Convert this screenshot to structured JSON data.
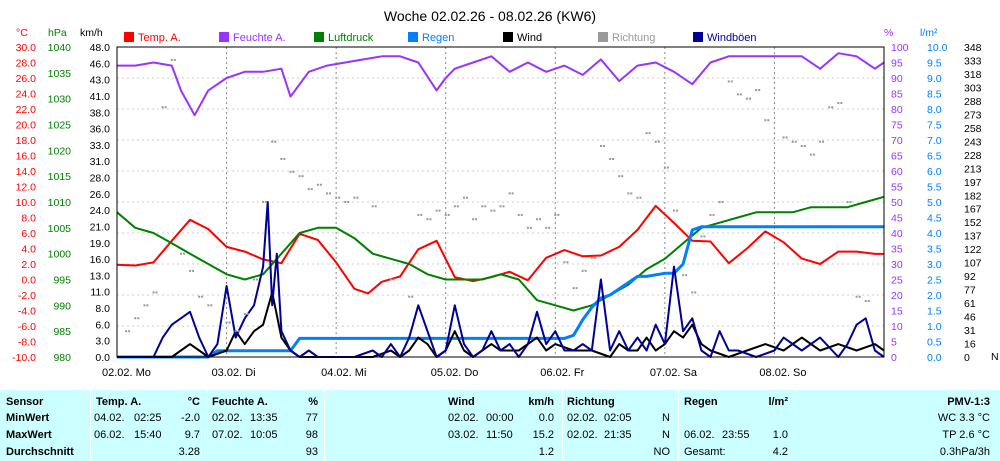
{
  "chart_data": {
    "type": "line",
    "title": "Woche 02.02.26 - 08.02.26 (KW6)",
    "xlabels": [
      "02.02. Mo",
      "03.02. Di",
      "04.02. Mi",
      "05.02. Do",
      "06.02. Fr",
      "07.02. Sa",
      "08.02. So"
    ],
    "legend": [
      {
        "name": "Temp. A.",
        "color": "#ff0000"
      },
      {
        "name": "Feuchte A.",
        "color": "#9933ff"
      },
      {
        "name": "Luftdruck",
        "color": "#008000"
      },
      {
        "name": "Regen",
        "color": "#0080ff"
      },
      {
        "name": "Wind",
        "color": "#000000"
      },
      {
        "name": "Richtung",
        "color": "#999999"
      },
      {
        "name": "Windböen",
        "color": "#000099"
      }
    ],
    "axes": {
      "temp": {
        "unit": "°C",
        "color": "#ff0000",
        "ylim": [
          -10,
          30
        ],
        "ticks": [
          "30.0",
          "28.0",
          "26.0",
          "24.0",
          "22.0",
          "20.0",
          "18.0",
          "16.0",
          "14.0",
          "12.0",
          "10.0",
          "8.0",
          "6.0",
          "4.0",
          "2.0",
          "0.0",
          "-2.0",
          "-4.0",
          "-6.0",
          "-8.0",
          "-10.0"
        ]
      },
      "pressure": {
        "unit": "hPa",
        "color": "#008000",
        "ylim": [
          980,
          1040
        ],
        "ticks": [
          "1040",
          "1035",
          "1030",
          "1025",
          "1020",
          "1015",
          "1010",
          "1005",
          "1000",
          "995",
          "990",
          "985",
          "980"
        ]
      },
      "wind": {
        "unit": "km/h",
        "color": "#000000",
        "ylim": [
          0,
          48
        ],
        "ticks": [
          "48.0",
          "46.0",
          "43.0",
          "41.0",
          "38.0",
          "36.0",
          "33.0",
          "31.0",
          "28.0",
          "26.0",
          "24.0",
          "21.0",
          "19.0",
          "16.0",
          "13.0",
          "11.0",
          "8.0",
          "6.0",
          "3.0",
          "0.0"
        ]
      },
      "humidity": {
        "unit": "%",
        "color": "#9933ff",
        "ylim": [
          0,
          100
        ],
        "ticks": [
          "100",
          "95",
          "90",
          "85",
          "80",
          "75",
          "70",
          "65",
          "60",
          "55",
          "50",
          "45",
          "40",
          "35",
          "30",
          "25",
          "20",
          "15",
          "10",
          "5",
          "0"
        ]
      },
      "rain": {
        "unit": "l/m²",
        "color": "#0080ff",
        "ylim": [
          0,
          10
        ],
        "ticks": [
          "10.0",
          "9.5",
          "9.0",
          "8.5",
          "8.0",
          "7.5",
          "7.0",
          "6.5",
          "6.0",
          "5.5",
          "5.0",
          "4.5",
          "4.0",
          "3.5",
          "3.0",
          "2.5",
          "2.0",
          "1.5",
          "1.0",
          "0.5",
          "0.0"
        ]
      },
      "direction": {
        "color": "#000000",
        "ylim": [
          0,
          360
        ],
        "ticks": [
          "348",
          "333",
          "318",
          "303",
          "288",
          "273",
          "258",
          "243",
          "228",
          "213",
          "197",
          "182",
          "167",
          "152",
          "137",
          "122",
          "107",
          "92",
          "77",
          "61",
          "46",
          "31",
          "16",
          "0"
        ],
        "label": "N"
      }
    },
    "x_range_hours": [
      0,
      168
    ],
    "series": [
      {
        "name": "Temp. A.",
        "axis": "temp",
        "color": "#ff0000",
        "x": [
          0,
          4,
          8,
          12,
          16,
          20,
          24,
          28,
          32,
          36,
          40,
          44,
          48,
          52,
          55,
          58,
          62,
          66,
          70,
          74,
          78,
          82,
          86,
          90,
          94,
          98,
          102,
          106,
          110,
          114,
          118,
          122,
          126,
          130,
          134,
          138,
          142,
          146,
          150,
          154,
          158,
          162,
          166,
          168
        ],
        "y": [
          1.9,
          1.8,
          2.2,
          5.0,
          7.7,
          6.5,
          4.2,
          3.6,
          2.6,
          2.1,
          5.9,
          5.1,
          2.2,
          -1.2,
          -1.8,
          -0.3,
          0.4,
          3.9,
          5.0,
          0.3,
          -0.2,
          0.3,
          1.0,
          -0.1,
          2.8,
          3.8,
          3.0,
          3.1,
          4.2,
          6.4,
          9.5,
          7.3,
          5.0,
          4.9,
          2.1,
          4.0,
          6.2,
          4.8,
          2.7,
          2.0,
          3.6,
          3.6,
          3.3,
          3.3
        ]
      },
      {
        "name": "Feuchte A.",
        "axis": "humidity",
        "color": "#9933ff",
        "x": [
          0,
          4,
          8,
          12,
          14,
          17,
          20,
          24,
          28,
          32,
          36,
          38,
          42,
          46,
          50,
          54,
          58,
          62,
          66,
          70,
          72,
          74,
          78,
          82,
          86,
          90,
          94,
          98,
          102,
          106,
          110,
          114,
          118,
          122,
          126,
          130,
          134,
          138,
          142,
          146,
          150,
          154,
          158,
          162,
          166,
          168
        ],
        "y": [
          94,
          94,
          95,
          94,
          86,
          78,
          86,
          90,
          92,
          92,
          93,
          84,
          92,
          94,
          95,
          96,
          97,
          97,
          95,
          86,
          90,
          93,
          95,
          97,
          92,
          95,
          92,
          94,
          91,
          96,
          89,
          94,
          95,
          92,
          88,
          95,
          97,
          97,
          97,
          97,
          97,
          93,
          98,
          97,
          93,
          95
        ]
      },
      {
        "name": "Luftdruck",
        "axis": "pressure",
        "color": "#008000",
        "x": [
          0,
          4,
          8,
          12,
          16,
          20,
          24,
          28,
          32,
          36,
          40,
          44,
          48,
          52,
          56,
          60,
          64,
          68,
          72,
          76,
          80,
          84,
          88,
          92,
          96,
          100,
          104,
          108,
          112,
          116,
          120,
          124,
          128,
          132,
          136,
          140,
          144,
          148,
          152,
          156,
          160,
          164,
          168
        ],
        "y": [
          1008,
          1005,
          1004,
          1002,
          1000,
          998,
          996,
          995,
          996,
          1000,
          1004,
          1005,
          1005,
          1003,
          1000,
          999,
          998,
          996,
          995,
          995,
          995,
          996,
          995,
          991,
          990,
          989,
          990,
          992,
          994,
          997,
          999,
          1002,
          1005,
          1006,
          1007,
          1008,
          1008,
          1008,
          1009,
          1009,
          1009,
          1010,
          1011
        ]
      },
      {
        "name": "Regen",
        "axis": "rain",
        "color": "#0080ff",
        "x": [
          0,
          20,
          22,
          38,
          40,
          98,
          100,
          102,
          104,
          106,
          108,
          112,
          114,
          116,
          120,
          122,
          124,
          126,
          128,
          130,
          132,
          134,
          136,
          168
        ],
        "y": [
          0,
          0,
          0.2,
          0.2,
          0.6,
          0.6,
          0.7,
          1.2,
          1.6,
          1.9,
          2.0,
          2.4,
          2.6,
          2.6,
          2.7,
          2.7,
          3.0,
          4.1,
          4.2,
          4.2,
          4.2,
          4.2,
          4.2,
          4.2
        ]
      },
      {
        "name": "Wind",
        "axis": "wind",
        "color": "#000000",
        "x": [
          0,
          4,
          8,
          12,
          14,
          16,
          18,
          20,
          24,
          26,
          28,
          30,
          32,
          34,
          36,
          38,
          40,
          42,
          44,
          48,
          52,
          56,
          60,
          62,
          64,
          66,
          68,
          70,
          72,
          74,
          76,
          78,
          80,
          82,
          84,
          88,
          92,
          94,
          96,
          100,
          104,
          108,
          110,
          112,
          114,
          116,
          118,
          120,
          122,
          124,
          126,
          128,
          130,
          134,
          138,
          142,
          146,
          150,
          154,
          158,
          162,
          166,
          168
        ],
        "y": [
          0,
          0,
          0,
          0,
          1,
          2,
          1,
          0,
          1,
          4,
          2,
          4,
          5,
          10,
          3,
          1,
          0,
          0,
          0,
          0,
          0,
          0,
          1,
          0,
          1,
          3,
          2,
          0,
          1,
          4,
          1,
          0,
          1,
          2,
          1,
          1,
          3,
          1,
          2,
          1,
          1,
          0,
          2,
          1,
          1,
          3,
          1,
          2,
          4,
          3,
          5,
          2,
          1,
          0,
          1,
          2,
          1,
          3,
          1,
          2,
          1,
          2,
          1
        ]
      },
      {
        "name": "Windböen",
        "axis": "wind",
        "color": "#000099",
        "x": [
          0,
          4,
          8,
          10,
          12,
          14,
          16,
          18,
          20,
          22,
          24,
          26,
          28,
          30,
          32,
          33,
          34,
          35,
          36,
          38,
          40,
          42,
          44,
          46,
          48,
          52,
          56,
          58,
          60,
          62,
          64,
          66,
          68,
          70,
          72,
          74,
          76,
          78,
          80,
          82,
          84,
          86,
          88,
          90,
          92,
          94,
          96,
          98,
          100,
          102,
          104,
          106,
          108,
          110,
          112,
          114,
          116,
          118,
          120,
          122,
          124,
          126,
          128,
          130,
          132,
          134,
          136,
          140,
          144,
          146,
          150,
          154,
          158,
          160,
          162,
          164,
          166,
          168
        ],
        "y": [
          0,
          0,
          0,
          3,
          5,
          6,
          7,
          3,
          0,
          2,
          11,
          3,
          6,
          8,
          14,
          24,
          8,
          16,
          4,
          1,
          0,
          1,
          0,
          0,
          0,
          0,
          1,
          0,
          2,
          0,
          3,
          8,
          4,
          0,
          1,
          8,
          2,
          0,
          1,
          4,
          1,
          2,
          0,
          2,
          7,
          2,
          4,
          1,
          1,
          2,
          1,
          12,
          1,
          4,
          1,
          3,
          1,
          5,
          2,
          14,
          4,
          6,
          1,
          0,
          4,
          1,
          1,
          0,
          1,
          3,
          1,
          3,
          0,
          2,
          5,
          6,
          1,
          0
        ]
      },
      {
        "name": "Richtung",
        "axis": "direction",
        "color": "#999999",
        "style": "dots",
        "x": [
          2,
          4,
          6,
          8,
          10,
          12,
          14,
          16,
          18,
          20,
          24,
          26,
          28,
          30,
          32,
          34,
          36,
          38,
          40,
          42,
          44,
          46,
          48,
          50,
          52,
          56,
          60,
          64,
          66,
          68,
          70,
          72,
          74,
          76,
          78,
          80,
          82,
          84,
          86,
          88,
          90,
          92,
          94,
          96,
          98,
          100,
          102,
          104,
          106,
          108,
          110,
          112,
          114,
          116,
          118,
          120,
          122,
          124,
          126,
          128,
          130,
          132,
          134,
          136,
          138,
          140,
          142,
          146,
          148,
          150,
          152,
          154,
          156,
          158,
          160,
          162,
          164
        ],
        "y": [
          30,
          45,
          60,
          75,
          290,
          345,
          120,
          100,
          70,
          60,
          40,
          30,
          50,
          90,
          180,
          250,
          230,
          215,
          210,
          195,
          200,
          190,
          185,
          180,
          185,
          175,
          90,
          70,
          165,
          160,
          170,
          165,
          175,
          185,
          160,
          175,
          170,
          175,
          190,
          165,
          150,
          160,
          150,
          165,
          110,
          80,
          100,
          115,
          245,
          230,
          210,
          190,
          185,
          260,
          250,
          220,
          170,
          95,
          75,
          140,
          165,
          180,
          320,
          305,
          300,
          310,
          275,
          255,
          250,
          245,
          235,
          250,
          290,
          295,
          180,
          70,
          65
        ]
      }
    ]
  },
  "stats": {
    "headers": {
      "sensor": "Sensor",
      "temp": "Temp. A.",
      "temp_unit": "°C",
      "hum": "Feuchte A.",
      "hum_unit": "%",
      "wind": "Wind",
      "wind_unit": "km/h",
      "dir": "Richtung",
      "rain": "Regen",
      "rain_unit": "l/m²",
      "pmv": "PMV-1:3"
    },
    "rows": [
      {
        "label": "MinWert",
        "temp_date": "04.02.",
        "temp_time": "02:25",
        "temp_val": "-2.0",
        "hum_date": "02.02.",
        "hum_time": "13:35",
        "hum_val": "77",
        "wind_date": "02.02.",
        "wind_time": "00:00",
        "wind_val": "0.0",
        "dir_date": "02.02.",
        "dir_time": "02:05",
        "dir_val": "N",
        "rain_date": "",
        "rain_time": "",
        "rain_val": "",
        "pmv": "WC 3.3 °C"
      },
      {
        "label": "MaxWert",
        "temp_date": "06.02.",
        "temp_time": "15:40",
        "temp_val": "9.7",
        "hum_date": "07.02.",
        "hum_time": "10:05",
        "hum_val": "98",
        "wind_date": "03.02.",
        "wind_time": "11:50",
        "wind_val": "15.2",
        "dir_date": "02.02.",
        "dir_time": "21:35",
        "dir_val": "N",
        "rain_date": "06.02.",
        "rain_time": "23:55",
        "rain_val": "1.0",
        "pmv": "TP 2.6 °C"
      },
      {
        "label": "Durchschnitt",
        "temp_date": "",
        "temp_time": "",
        "temp_val": "3.28",
        "hum_date": "",
        "hum_time": "",
        "hum_val": "93",
        "wind_date": "",
        "wind_time": "",
        "wind_val": "1.2",
        "dir_date": "",
        "dir_time": "",
        "dir_val": "NO",
        "rain_date": "Gesamt:",
        "rain_time": "",
        "rain_val": "4.2",
        "pmv": "0.3hPa/3h"
      }
    ]
  }
}
